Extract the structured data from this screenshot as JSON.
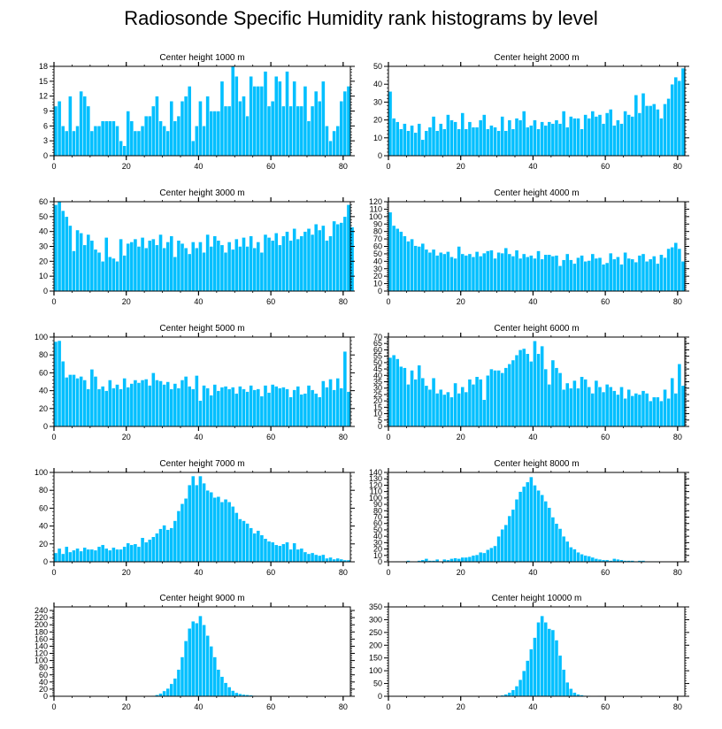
{
  "page_title": "Radiosonde Specific Humidity rank histograms by level",
  "colors": {
    "bar": "#00BFFF",
    "bar_edge": "#ffffff",
    "axis": "#000000"
  },
  "chart_data": [
    {
      "type": "bar",
      "title": "Center height 1000 m",
      "xlim": [
        0,
        82
      ],
      "xticks": [
        0,
        20,
        40,
        60,
        80
      ],
      "ylim": [
        0,
        18
      ],
      "yticks": [
        0,
        3,
        6,
        9,
        12,
        15,
        18
      ],
      "values": [
        10,
        11,
        6,
        5,
        12,
        5,
        6,
        13,
        12,
        10,
        5,
        6,
        6,
        7,
        7,
        7,
        7,
        6,
        3,
        2,
        9,
        7,
        5,
        5,
        6,
        8,
        8,
        10,
        12,
        7,
        6,
        5,
        11,
        7,
        8,
        11,
        12,
        14,
        3,
        6,
        11,
        6,
        12,
        9,
        9,
        9,
        15,
        10,
        10,
        18,
        16,
        11,
        12,
        8,
        16,
        14,
        14,
        14,
        17,
        10,
        11,
        16,
        15,
        10,
        17,
        10,
        15,
        10,
        10,
        14,
        7,
        10,
        13,
        11,
        15,
        6,
        3,
        5,
        6,
        11,
        13,
        14
      ]
    },
    {
      "type": "bar",
      "title": "Center height 2000 m",
      "xlim": [
        0,
        82
      ],
      "xticks": [
        0,
        20,
        40,
        60,
        80
      ],
      "ylim": [
        0,
        50
      ],
      "yticks": [
        0,
        10,
        20,
        30,
        40,
        50
      ],
      "values": [
        36,
        21,
        19,
        15,
        18,
        14,
        17,
        13,
        18,
        9,
        14,
        16,
        22,
        14,
        18,
        15,
        23,
        20,
        19,
        15,
        24,
        15,
        19,
        16,
        16,
        20,
        23,
        15,
        17,
        16,
        14,
        22,
        14,
        20,
        15,
        21,
        20,
        25,
        16,
        17,
        20,
        15,
        19,
        17,
        19,
        18,
        20,
        18,
        25,
        16,
        22,
        21,
        21,
        15,
        23,
        21,
        25,
        22,
        23,
        18,
        24,
        26,
        17,
        20,
        18,
        25,
        23,
        22,
        34,
        24,
        35,
        28,
        28,
        29,
        26,
        21,
        29,
        32,
        40,
        44,
        42,
        49
      ]
    },
    {
      "type": "bar",
      "title": "Center height 3000 m",
      "xlim": [
        0,
        82
      ],
      "xticks": [
        0,
        20,
        40,
        60,
        80
      ],
      "ylim": [
        0,
        60
      ],
      "yticks": [
        0,
        10,
        20,
        30,
        40,
        50,
        60
      ],
      "values": [
        58,
        60,
        54,
        50,
        44,
        27,
        41,
        39,
        31,
        38,
        34,
        28,
        26,
        20,
        36,
        23,
        22,
        20,
        35,
        24,
        32,
        33,
        35,
        30,
        36,
        29,
        34,
        35,
        31,
        38,
        29,
        33,
        37,
        23,
        34,
        32,
        29,
        25,
        33,
        29,
        33,
        26,
        38,
        30,
        37,
        34,
        31,
        26,
        33,
        28,
        35,
        30,
        36,
        30,
        37,
        29,
        33,
        26,
        38,
        36,
        34,
        39,
        31,
        37,
        40,
        34,
        42,
        35,
        37,
        40,
        42,
        38,
        45,
        41,
        44,
        34,
        37,
        47,
        45,
        46,
        50,
        58,
        43
      ]
    },
    {
      "type": "bar",
      "title": "Center height 4000 m",
      "xlim": [
        0,
        82
      ],
      "xticks": [
        0,
        20,
        40,
        60,
        80
      ],
      "ylim": [
        0,
        120
      ],
      "yticks": [
        0,
        10,
        20,
        30,
        40,
        50,
        60,
        70,
        80,
        90,
        100,
        110,
        120
      ],
      "values": [
        106,
        88,
        84,
        80,
        74,
        67,
        70,
        61,
        60,
        64,
        56,
        52,
        56,
        48,
        52,
        50,
        53,
        46,
        44,
        60,
        50,
        48,
        50,
        46,
        53,
        47,
        51,
        54,
        55,
        44,
        52,
        51,
        58,
        50,
        47,
        55,
        44,
        50,
        46,
        48,
        44,
        54,
        43,
        49,
        49,
        47,
        48,
        34,
        42,
        50,
        42,
        37,
        45,
        48,
        40,
        41,
        50,
        44,
        45,
        36,
        38,
        51,
        43,
        46,
        36,
        52,
        44,
        43,
        39,
        48,
        50,
        40,
        43,
        47,
        37,
        49,
        45,
        57,
        59,
        65,
        57,
        40
      ]
    },
    {
      "type": "bar",
      "title": "Center height 5000 m",
      "xlim": [
        0,
        82
      ],
      "xticks": [
        0,
        20,
        40,
        60,
        80
      ],
      "ylim": [
        0,
        100
      ],
      "yticks": [
        0,
        20,
        40,
        60,
        80,
        100
      ],
      "values": [
        95,
        96,
        73,
        55,
        58,
        58,
        54,
        56,
        52,
        42,
        64,
        56,
        42,
        45,
        40,
        52,
        43,
        47,
        42,
        54,
        44,
        48,
        52,
        49,
        52,
        53,
        46,
        60,
        52,
        51,
        47,
        50,
        42,
        48,
        43,
        52,
        56,
        45,
        42,
        57,
        29,
        46,
        43,
        35,
        47,
        40,
        44,
        45,
        42,
        44,
        37,
        45,
        42,
        39,
        46,
        41,
        42,
        34,
        46,
        38,
        47,
        45,
        43,
        44,
        42,
        33,
        41,
        45,
        36,
        37,
        46,
        41,
        37,
        33,
        51,
        44,
        53,
        41,
        54,
        43,
        84,
        39
      ]
    },
    {
      "type": "bar",
      "title": "Center height 6000 m",
      "xlim": [
        0,
        82
      ],
      "xticks": [
        0,
        20,
        40,
        60,
        80
      ],
      "ylim": [
        0,
        70
      ],
      "yticks": [
        0,
        5,
        10,
        15,
        20,
        25,
        30,
        35,
        40,
        45,
        50,
        55,
        60,
        65,
        70
      ],
      "values": [
        54,
        56,
        53,
        47,
        46,
        33,
        44,
        37,
        48,
        38,
        32,
        29,
        38,
        26,
        29,
        25,
        27,
        23,
        34,
        26,
        31,
        27,
        37,
        33,
        39,
        37,
        21,
        40,
        45,
        44,
        44,
        42,
        46,
        49,
        52,
        56,
        60,
        61,
        57,
        51,
        67,
        57,
        63,
        45,
        33,
        52,
        46,
        42,
        29,
        34,
        30,
        36,
        30,
        39,
        37,
        31,
        26,
        36,
        31,
        27,
        33,
        31,
        28,
        25,
        31,
        22,
        29,
        24,
        26,
        25,
        28,
        26,
        20,
        23,
        23,
        20,
        29,
        22,
        38,
        26,
        49,
        32
      ]
    },
    {
      "type": "bar",
      "title": "Center height 7000 m",
      "xlim": [
        0,
        82
      ],
      "xticks": [
        0,
        20,
        40,
        60,
        80
      ],
      "ylim": [
        0,
        100
      ],
      "yticks": [
        0,
        20,
        40,
        60,
        80,
        100
      ],
      "values": [
        10,
        15,
        9,
        17,
        11,
        13,
        15,
        12,
        16,
        14,
        14,
        13,
        17,
        19,
        15,
        13,
        16,
        14,
        14,
        17,
        21,
        19,
        20,
        17,
        27,
        22,
        25,
        28,
        32,
        37,
        41,
        36,
        38,
        46,
        57,
        65,
        71,
        86,
        96,
        86,
        96,
        88,
        80,
        78,
        72,
        73,
        67,
        70,
        67,
        62,
        55,
        48,
        46,
        43,
        38,
        32,
        35,
        30,
        26,
        23,
        22,
        19,
        18,
        20,
        22,
        14,
        21,
        14,
        15,
        11,
        9,
        10,
        8,
        7,
        8,
        4,
        5,
        3,
        4,
        3,
        2,
        2
      ]
    },
    {
      "type": "bar",
      "title": "Center height 8000 m",
      "xlim": [
        0,
        82
      ],
      "xticks": [
        0,
        20,
        40,
        60,
        80
      ],
      "ylim": [
        0,
        140
      ],
      "yticks": [
        0,
        10,
        20,
        30,
        40,
        50,
        60,
        70,
        80,
        90,
        100,
        110,
        120,
        130,
        140
      ],
      "values": [
        0,
        0,
        1,
        0,
        1,
        2,
        1,
        0,
        2,
        3,
        5,
        2,
        2,
        4,
        1,
        4,
        3,
        5,
        6,
        5,
        7,
        7,
        8,
        10,
        11,
        15,
        14,
        19,
        22,
        25,
        40,
        51,
        58,
        72,
        82,
        98,
        110,
        118,
        125,
        133,
        120,
        112,
        105,
        95,
        85,
        70,
        60,
        52,
        40,
        32,
        23,
        20,
        15,
        12,
        10,
        9,
        7,
        5,
        4,
        3,
        3,
        2,
        5,
        4,
        3,
        2,
        2,
        2,
        1,
        2,
        2,
        1,
        1,
        1,
        1,
        0,
        0,
        0,
        0,
        0,
        0,
        0
      ]
    },
    {
      "type": "bar",
      "title": "Center height 9000 m",
      "xlim": [
        0,
        82
      ],
      "xticks": [
        0,
        20,
        40,
        60,
        80
      ],
      "ylim": [
        0,
        250
      ],
      "yticks": [
        0,
        20,
        40,
        60,
        80,
        100,
        120,
        140,
        160,
        180,
        200,
        220,
        240
      ],
      "values": [
        0,
        0,
        0,
        0,
        0,
        0,
        0,
        0,
        0,
        0,
        0,
        0,
        0,
        0,
        0,
        0,
        0,
        0,
        0,
        0,
        0,
        0,
        0,
        0,
        0,
        1,
        1,
        2,
        4,
        8,
        15,
        22,
        35,
        50,
        75,
        110,
        155,
        190,
        210,
        205,
        225,
        200,
        170,
        140,
        110,
        75,
        55,
        38,
        26,
        16,
        10,
        7,
        5,
        4,
        3,
        2,
        1,
        1,
        1,
        1,
        0,
        0,
        0,
        0,
        0,
        0,
        1,
        1,
        0,
        0,
        0,
        0,
        0,
        0,
        0,
        0,
        0,
        0,
        0,
        0,
        0,
        0
      ]
    },
    {
      "type": "bar",
      "title": "Center height 10000 m",
      "xlim": [
        0,
        82
      ],
      "xticks": [
        0,
        20,
        40,
        60,
        80
      ],
      "ylim": [
        0,
        350
      ],
      "yticks": [
        0,
        50,
        100,
        150,
        200,
        250,
        300,
        350
      ],
      "values": [
        0,
        0,
        0,
        0,
        0,
        0,
        0,
        0,
        0,
        0,
        0,
        0,
        0,
        0,
        0,
        0,
        0,
        0,
        0,
        0,
        0,
        0,
        0,
        0,
        0,
        0,
        0,
        0,
        0,
        1,
        2,
        4,
        8,
        15,
        25,
        40,
        65,
        100,
        140,
        185,
        230,
        290,
        315,
        290,
        265,
        260,
        220,
        160,
        105,
        55,
        30,
        15,
        8,
        5,
        3,
        2,
        1,
        1,
        2,
        1,
        0,
        1,
        0,
        0,
        0,
        0,
        0,
        0,
        0,
        0,
        0,
        0,
        0,
        0,
        0,
        0,
        0,
        0,
        0,
        0,
        0,
        0
      ]
    }
  ]
}
